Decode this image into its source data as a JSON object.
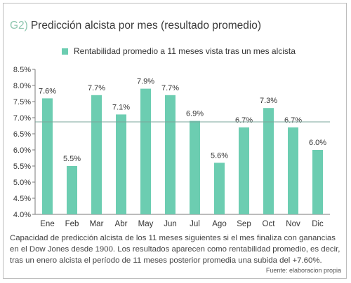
{
  "header": {
    "prefix": "G2)",
    "title": "Predicción alcista por mes (resultado promedio)"
  },
  "colors": {
    "bar": "#6ccdb1",
    "prefix": "#8fc7b0",
    "reference_line": "#7aa59a",
    "axis": "#7a7a7a"
  },
  "chart_data": {
    "type": "bar",
    "categories": [
      "Ene",
      "Feb",
      "Mar",
      "Abr",
      "May",
      "Jun",
      "Jul",
      "Ago",
      "Sep",
      "Oct",
      "Nov",
      "Dic"
    ],
    "series": [
      {
        "name": "Rentabilidad promedio a 11 meses vista tras un mes alcista",
        "values": [
          7.6,
          5.5,
          7.7,
          7.1,
          7.9,
          7.7,
          6.9,
          5.6,
          6.7,
          7.3,
          6.7,
          6.0
        ]
      }
    ],
    "data_labels": [
      "7.6%",
      "5.5%",
      "7.7%",
      "7.1%",
      "7.9%",
      "7.7%",
      "6.9%",
      "5.6%",
      "6.7%",
      "7.3%",
      "6.7%",
      "6.0%"
    ],
    "yticks": [
      4.0,
      4.5,
      5.0,
      5.5,
      6.0,
      6.5,
      7.0,
      7.5,
      8.0,
      8.5
    ],
    "ytick_labels": [
      "4.0%",
      "4.5%",
      "5.0%",
      "5.5%",
      "6.0%",
      "6.5%",
      "7.0%",
      "7.5%",
      "8.0%",
      "8.5%"
    ],
    "ylim": [
      4.0,
      8.5
    ],
    "reference_line": 6.87,
    "legend_position": "top",
    "grid": false
  },
  "caption": "Capacidad de predicción alcista de los 11 meses siguientes si el mes finaliza con ganancias en el Dow Jones desde 1900. Los resultados aparecen como rentabilidad promedio, es decir, tras un enero alcista el período de 11 meses posterior promedia una subida del +7.60%.",
  "source": "Fuente: elaboracion propia"
}
